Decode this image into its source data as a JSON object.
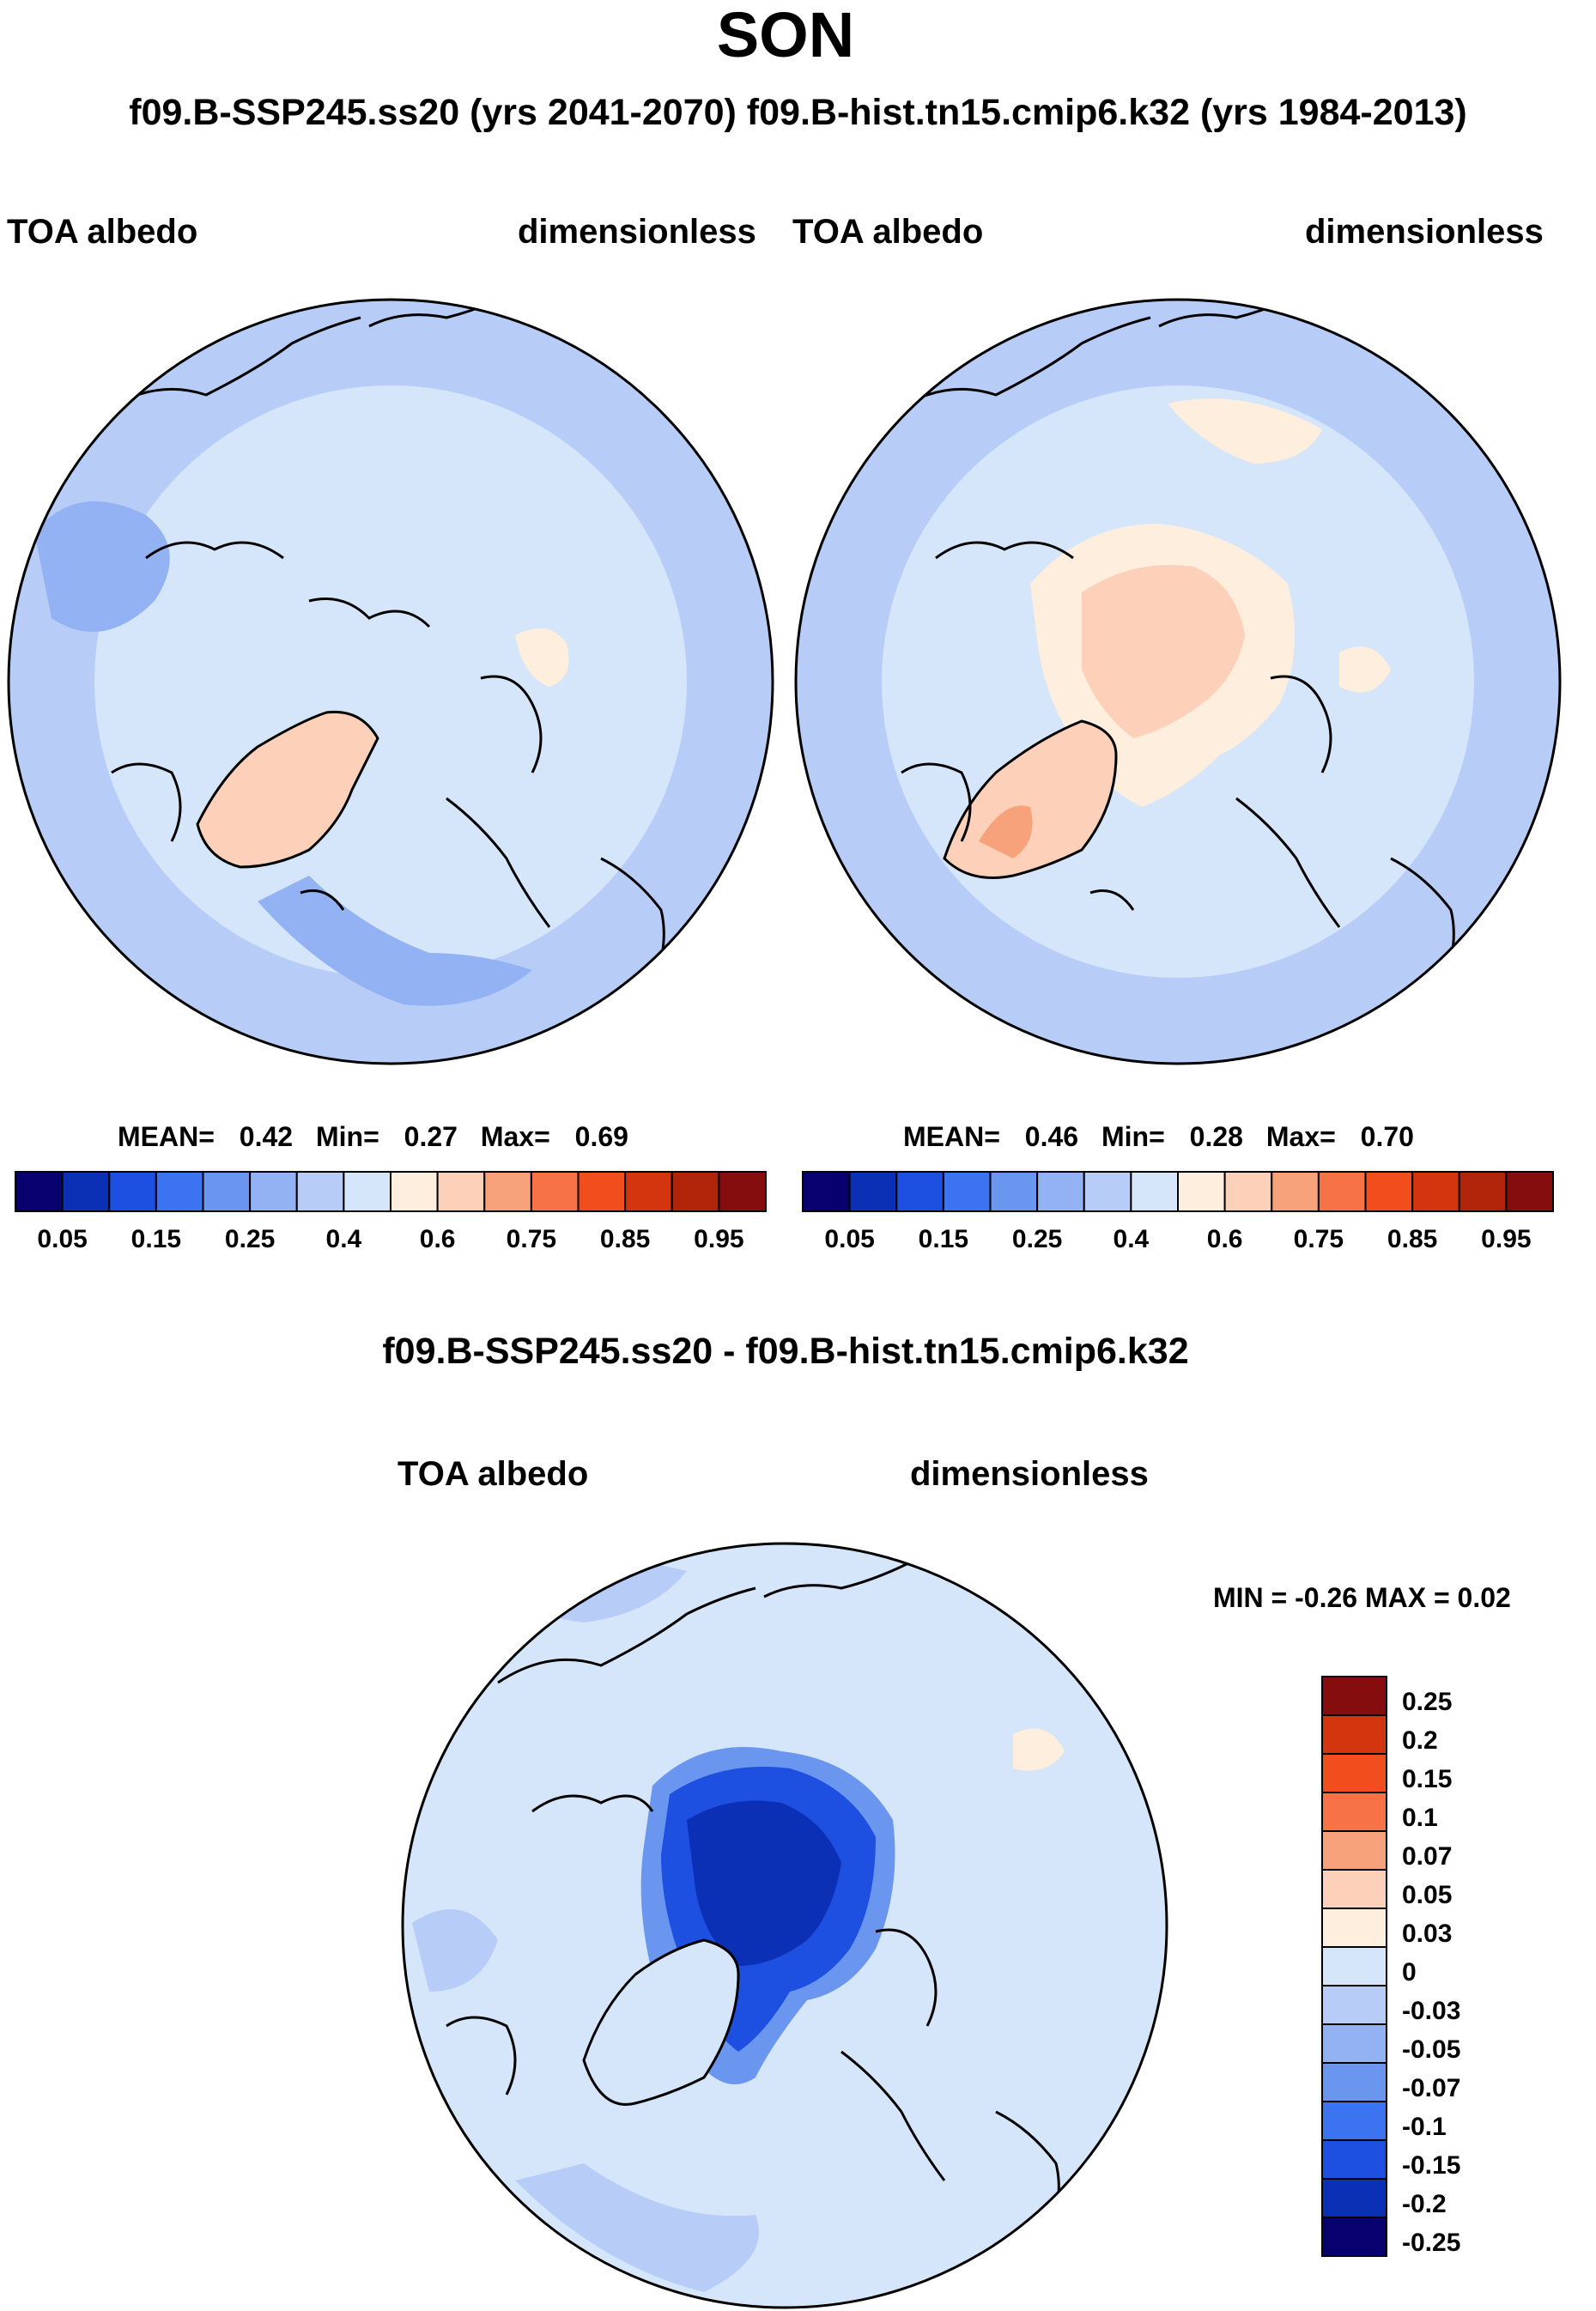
{
  "page": {
    "title": "SON",
    "subtitle": "f09.B-SSP245.ss20 (yrs 2041-2070)  f09.B-hist.tn15.cmip6.k32 (yrs 1984-2013)",
    "diff_title": "f09.B-SSP245.ss20 - f09.B-hist.tn15.cmip6.k32"
  },
  "palettes": {
    "abs_colors": [
      "#08006e",
      "#0b2fb5",
      "#1d4fe0",
      "#3b73f0",
      "#6b96f0",
      "#93b2f3",
      "#b7cdf7",
      "#d5e6fb",
      "#feeedd",
      "#fdd0b9",
      "#f8a27c",
      "#f77246",
      "#f24e1d",
      "#d3350f",
      "#b0250a",
      "#860d0d"
    ],
    "diff_colors": [
      "#08006e",
      "#0b2fb5",
      "#1d4fe0",
      "#3b73f0",
      "#6b96f0",
      "#93b2f3",
      "#b7cdf7",
      "#d5e6fb",
      "#feeedd",
      "#fdd0b9",
      "#f8a27c",
      "#f77246",
      "#f24e1d",
      "#d3350f",
      "#860d0d"
    ]
  },
  "chart_data": [
    {
      "type": "heatmap",
      "projection": "north-polar-stereographic",
      "case": "f09.B-SSP245.ss20 (yrs 2041-2070)",
      "left_label": "TOA albedo",
      "right_label": "dimensionless",
      "stats": {
        "mean_label": "MEAN=",
        "mean": "0.42",
        "min_label": "Min=",
        "min": "0.27",
        "max_label": "Max=",
        "max": "0.69"
      },
      "colorbar": {
        "orientation": "horizontal",
        "tick_labels": [
          "0.05",
          "0.15",
          "0.25",
          "0.4",
          "0.6",
          "0.75",
          "0.85",
          "0.95"
        ]
      },
      "dominant_field": "light blue (0.35-0.5) over ocean and Eurasia/North America; pale orange (0.5-0.6) over central Greenland and patches over Siberia and Canadian Archipelago"
    },
    {
      "type": "heatmap",
      "projection": "north-polar-stereographic",
      "case": "f09.B-hist.tn15.cmip6.k32 (yrs 1984-2013)",
      "left_label": "TOA albedo",
      "right_label": "dimensionless",
      "stats": {
        "mean_label": "MEAN=",
        "mean": "0.46",
        "min_label": "Min=",
        "min": "0.28",
        "max_label": "Max=",
        "max": "0.70"
      },
      "colorbar": {
        "orientation": "horizontal",
        "tick_labels": [
          "0.05",
          "0.15",
          "0.25",
          "0.4",
          "0.6",
          "0.75",
          "0.85",
          "0.95"
        ]
      },
      "dominant_field": "pale orange (0.5-0.7) over Arctic Ocean sea ice and Greenland, light blue elsewhere"
    },
    {
      "type": "heatmap",
      "projection": "north-polar-stereographic",
      "case": "f09.B-SSP245.ss20 - f09.B-hist.tn15.cmip6.k32",
      "left_label": "TOA albedo",
      "right_label": "dimensionless",
      "stats": {
        "text": "MIN =  -0.26 MAX =    0.02"
      },
      "colorbar": {
        "orientation": "vertical",
        "tick_labels": [
          "0.25",
          "0.2",
          "0.15",
          "0.1",
          "0.07",
          "0.05",
          "0.03",
          "0",
          "-0.03",
          "-0.05",
          "-0.07",
          "-0.1",
          "-0.15",
          "-0.2",
          "-0.25"
        ]
      },
      "dominant_field": "strong decrease (-0.1 to -0.26) over the Arctic Ocean north of Greenland and Canada; near zero (-0.03 to 0) elsewhere"
    }
  ]
}
